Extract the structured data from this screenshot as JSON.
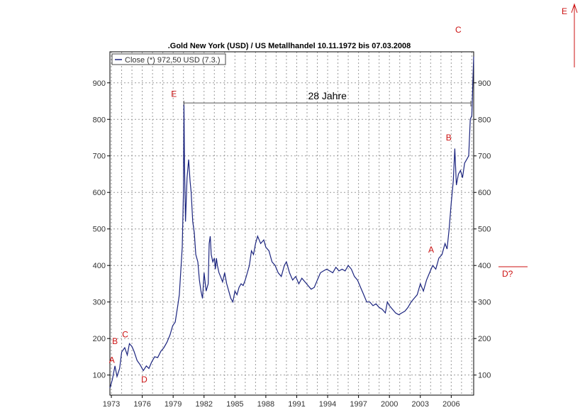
{
  "colors": {
    "series": "#1a237e",
    "grid": "#9a9a9a",
    "annotation": "#cc1111",
    "frame": "#000000"
  },
  "chart_data": {
    "type": "line",
    "title": ".Gold New York (USD) / US Metallhandel 10.11.1972 bis 07.03.2008",
    "xlabel": "",
    "ylabel": "",
    "legend": {
      "label": "Close (*) 972,50 USD (7.3.)",
      "placement": "top-left"
    },
    "xlim": [
      1972.86,
      2008.18
    ],
    "ylim": [
      45,
      985
    ],
    "grid": true,
    "y_ticks": [
      100,
      200,
      300,
      400,
      500,
      600,
      700,
      800,
      900
    ],
    "x_ticks": [
      {
        "value": 1973,
        "label": "1973"
      },
      {
        "value": 1976,
        "label": "1976"
      },
      {
        "value": 1979,
        "label": "1979"
      },
      {
        "value": 1982,
        "label": "1982"
      },
      {
        "value": 1985,
        "label": "1985"
      },
      {
        "value": 1988,
        "label": "1988"
      },
      {
        "value": 1991,
        "label": "1991"
      },
      {
        "value": 1994,
        "label": "1994"
      },
      {
        "value": 1997,
        "label": "1997"
      },
      {
        "value": 2000,
        "label": "2000"
      },
      {
        "value": 2003,
        "label": "2003"
      },
      {
        "value": 2006,
        "label": "2006"
      }
    ],
    "series": [
      {
        "name": "Close",
        "x": [
          1972.86,
          1973.1,
          1973.35,
          1973.55,
          1973.8,
          1974.0,
          1974.3,
          1974.55,
          1974.75,
          1975.0,
          1975.2,
          1975.5,
          1975.8,
          1976.1,
          1976.4,
          1976.65,
          1976.9,
          1977.2,
          1977.5,
          1977.8,
          1978.1,
          1978.4,
          1978.7,
          1978.95,
          1979.2,
          1979.45,
          1979.6,
          1979.75,
          1979.88,
          1980.0,
          1980.05,
          1980.1,
          1980.2,
          1980.35,
          1980.5,
          1980.65,
          1980.75,
          1980.9,
          1981.05,
          1981.2,
          1981.4,
          1981.55,
          1981.7,
          1981.85,
          1982.0,
          1982.2,
          1982.4,
          1982.5,
          1982.6,
          1982.7,
          1982.85,
          1983.0,
          1983.1,
          1983.2,
          1983.3,
          1983.45,
          1983.6,
          1983.8,
          1984.0,
          1984.2,
          1984.4,
          1984.6,
          1984.8,
          1985.0,
          1985.2,
          1985.4,
          1985.6,
          1985.8,
          1986.0,
          1986.2,
          1986.4,
          1986.6,
          1986.8,
          1987.0,
          1987.2,
          1987.5,
          1987.8,
          1988.0,
          1988.3,
          1988.6,
          1988.9,
          1989.2,
          1989.5,
          1989.8,
          1990.0,
          1990.3,
          1990.6,
          1990.9,
          1991.2,
          1991.5,
          1991.8,
          1992.1,
          1992.4,
          1992.7,
          1993.0,
          1993.3,
          1993.6,
          1993.9,
          1994.2,
          1994.5,
          1994.8,
          1995.1,
          1995.4,
          1995.7,
          1996.0,
          1996.3,
          1996.6,
          1996.9,
          1997.2,
          1997.5,
          1997.8,
          1998.1,
          1998.4,
          1998.7,
          1999.0,
          1999.3,
          1999.6,
          1999.8,
          2000.0,
          2000.3,
          2000.6,
          2000.9,
          2001.2,
          2001.5,
          2001.8,
          2002.1,
          2002.4,
          2002.7,
          2003.0,
          2003.3,
          2003.6,
          2003.9,
          2004.2,
          2004.5,
          2004.8,
          2005.1,
          2005.4,
          2005.6,
          2005.8,
          2006.0,
          2006.2,
          2006.35,
          2006.5,
          2006.7,
          2006.9,
          2007.1,
          2007.3,
          2007.5,
          2007.7,
          2007.85,
          2008.0,
          2008.1,
          2008.18
        ],
        "values": [
          64,
          88,
          125,
          96,
          118,
          163,
          175,
          155,
          186,
          178,
          165,
          140,
          128,
          112,
          125,
          118,
          135,
          150,
          148,
          165,
          175,
          190,
          210,
          235,
          245,
          290,
          320,
          390,
          450,
          600,
          845,
          680,
          520,
          640,
          690,
          630,
          600,
          520,
          490,
          430,
          410,
          360,
          330,
          310,
          380,
          330,
          350,
          460,
          480,
          430,
          410,
          420,
          390,
          420,
          400,
          380,
          370,
          355,
          380,
          350,
          330,
          310,
          300,
          330,
          320,
          340,
          350,
          345,
          360,
          380,
          400,
          440,
          430,
          460,
          480,
          460,
          470,
          450,
          440,
          410,
          400,
          380,
          370,
          400,
          410,
          380,
          360,
          370,
          350,
          365,
          355,
          345,
          335,
          340,
          360,
          380,
          385,
          390,
          385,
          380,
          395,
          385,
          390,
          385,
          400,
          390,
          370,
          360,
          340,
          320,
          300,
          300,
          290,
          295,
          285,
          280,
          270,
          300,
          290,
          280,
          270,
          265,
          270,
          275,
          285,
          300,
          310,
          320,
          350,
          330,
          360,
          380,
          400,
          390,
          420,
          430,
          460,
          445,
          500,
          570,
          630,
          720,
          620,
          650,
          660,
          640,
          680,
          690,
          700,
          800,
          810,
          900,
          972
        ]
      }
    ],
    "annotations": [
      {
        "label": "A",
        "x": 1973.05,
        "y": 133
      },
      {
        "label": "B",
        "x": 1973.35,
        "y": 185
      },
      {
        "label": "C",
        "x": 1974.35,
        "y": 203
      },
      {
        "label": "D",
        "x": 1976.2,
        "y": 80
      },
      {
        "label": "E",
        "x": 1979.07,
        "y": 862
      },
      {
        "label": "A",
        "x": 2004.05,
        "y": 435
      },
      {
        "label": "B",
        "x": 2005.75,
        "y": 742
      }
    ],
    "span": {
      "label": "28 Jahre",
      "x_start": 1980.05,
      "x_end": 2007.9,
      "y": 845
    },
    "outer_marks": [
      {
        "label": "E"
      },
      {
        "label": "C"
      },
      {
        "label": "D?"
      }
    ]
  }
}
